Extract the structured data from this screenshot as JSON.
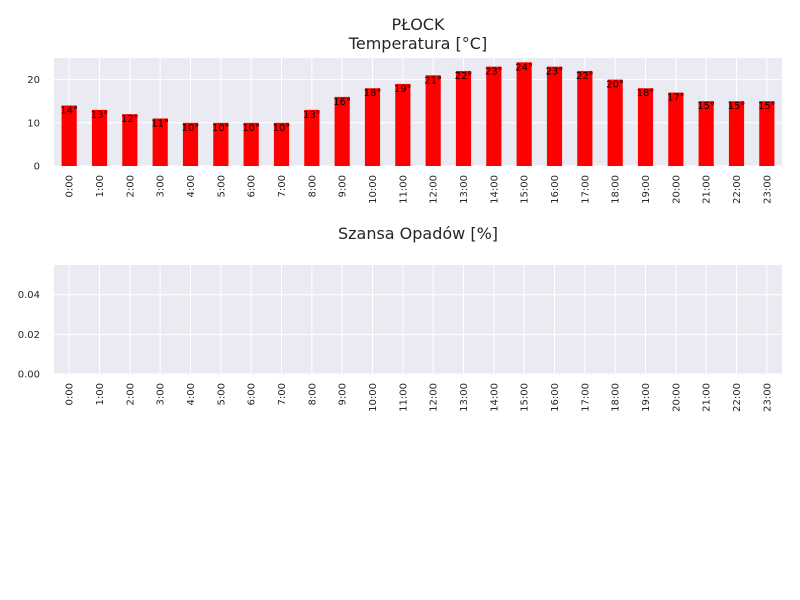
{
  "style": {
    "plot_bg": "#EAEAF2",
    "grid": "#FFFFFF",
    "bar": "#FF0000",
    "text": "#262626"
  },
  "chart_data": [
    {
      "type": "bar",
      "title_lines": [
        "PŁOCK",
        "Temperatura [°C]"
      ],
      "xlabel": "",
      "ylabel": "",
      "categories": [
        "0:00",
        "1:00",
        "2:00",
        "3:00",
        "4:00",
        "5:00",
        "6:00",
        "7:00",
        "8:00",
        "9:00",
        "10:00",
        "11:00",
        "12:00",
        "13:00",
        "14:00",
        "15:00",
        "16:00",
        "17:00",
        "18:00",
        "19:00",
        "20:00",
        "21:00",
        "22:00",
        "23:00"
      ],
      "values": [
        14,
        13,
        12,
        11,
        10,
        10,
        10,
        10,
        13,
        16,
        18,
        19,
        21,
        22,
        23,
        24,
        23,
        22,
        20,
        18,
        17,
        15,
        15,
        15
      ],
      "data_labels": [
        "14°",
        "13°",
        "12°",
        "11°",
        "10°",
        "10°",
        "10°",
        "10°",
        "13°",
        "16°",
        "18°",
        "19°",
        "21°",
        "22°",
        "23°",
        "24°",
        "23°",
        "22°",
        "20°",
        "18°",
        "17°",
        "15°",
        "15°",
        "15°"
      ],
      "ylim": [
        0,
        25
      ],
      "yticks": [
        0,
        10,
        20
      ],
      "ytick_labels": [
        "0",
        "10",
        "20"
      ],
      "grid": true,
      "legend": "none"
    },
    {
      "type": "bar",
      "title_lines": [
        "Szansa Opadów [%]"
      ],
      "xlabel": "",
      "ylabel": "",
      "categories": [
        "0:00",
        "1:00",
        "2:00",
        "3:00",
        "4:00",
        "5:00",
        "6:00",
        "7:00",
        "8:00",
        "9:00",
        "10:00",
        "11:00",
        "12:00",
        "13:00",
        "14:00",
        "15:00",
        "16:00",
        "17:00",
        "18:00",
        "19:00",
        "20:00",
        "21:00",
        "22:00",
        "23:00"
      ],
      "values": [
        0,
        0,
        0,
        0,
        0,
        0,
        0,
        0,
        0,
        0,
        0,
        0,
        0,
        0,
        0,
        0,
        0,
        0,
        0,
        0,
        0,
        0,
        0,
        0
      ],
      "data_labels": [],
      "ylim": [
        0,
        0.055
      ],
      "yticks": [
        0,
        0.02,
        0.04
      ],
      "ytick_labels": [
        "0.00",
        "0.02",
        "0.04"
      ],
      "grid": true,
      "legend": "none"
    }
  ]
}
